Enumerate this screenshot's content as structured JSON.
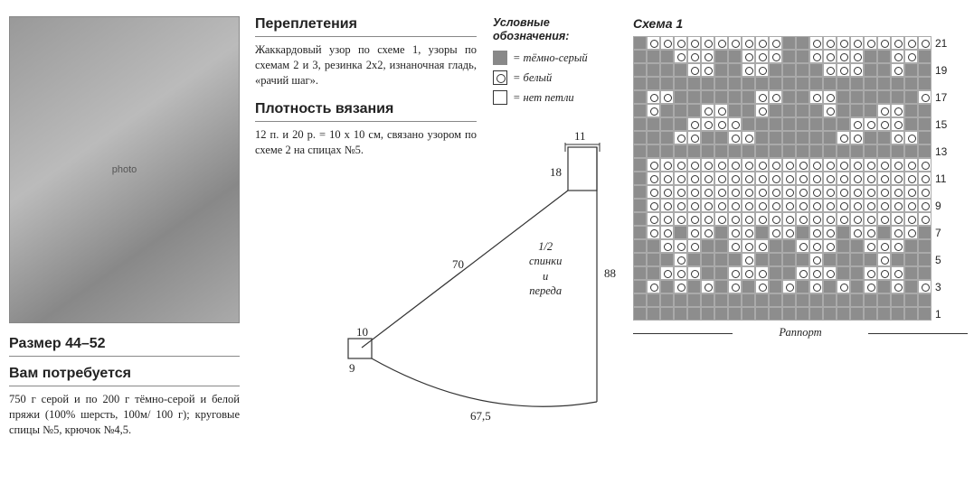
{
  "left": {
    "size_heading": "Размер 44–52",
    "need_heading": "Вам потребуется",
    "need_body": "750 г серой и по 200 г тёмно-серой и белой пряжи (100% шерсть, 100м/ 100 г); круговые спицы №5, крючок №4,5."
  },
  "mid": {
    "h1": "Переплетения",
    "b1": "Жаккардовый узор по схеме 1, узоры по схемам 2 и 3, резинка 2x2, изнаночная гладь, «рачий шаг».",
    "h2": "Плотность вязания",
    "b2": "12 п. и 20 р. = 10 x 10 см, связано узором по схеме 2 на спицах №5."
  },
  "legend": {
    "title": "Условные обозначения:",
    "dark_grey": "= тёмно-серый",
    "white": "= белый",
    "none": "= нет петли"
  },
  "schematic": {
    "d11": "11",
    "d18": "18",
    "d70": "70",
    "d88": "88",
    "d10": "10",
    "d9": "9",
    "d675": "67,5",
    "piece": "1/2\nспинки\nи\nпереда"
  },
  "chart": {
    "title": "Схема 1",
    "rapport_label": "Раппорт",
    "cols": 22,
    "rows": 21,
    "row_numbers": [
      21,
      19,
      17,
      15,
      13,
      11,
      9,
      7,
      5,
      3,
      1
    ],
    "grid_colors": {
      "g": "#8d8d8d",
      "w": "#ffffff"
    },
    "pattern": [
      "gwwwwwwwwwwggwwwwwwwww",
      "gggwwwggwwwggwwwwggwwg",
      "ggggwwggwwggggwwwggwgg",
      "gggggggggggggggggggggg",
      "gwwggggggwwggwwggggggw",
      "gwgggwwggwggggwgggwwgg",
      "ggggwwwwggggggggwwwwgg",
      "gggwwggwwggggggwwggwwg",
      "gggggggggggggggggggggg",
      "gwwwwwwwwwwwwwwwwwwwww",
      "gwwwwwwwwwwwwwwwwwwwww",
      "gwwwwwwwwwwwwwwwwwwwww",
      "gwwwwwwwwwwwwwwwwwwwww",
      "gwwwwwwwwwwwwwwwwwwwww",
      "gwwgwwgwwgwwgwwgwwgwwg",
      "ggwwwggwwwggwwwggwwwgg",
      "gggwggggwggggwggggwggg",
      "ggwwwggwwwggwwwggwwwgg",
      "gwgwgwgwgwgwgwgwgwgwgw",
      "gggggggggggggggggggggg",
      "gggggggggggggggggggggg"
    ]
  }
}
